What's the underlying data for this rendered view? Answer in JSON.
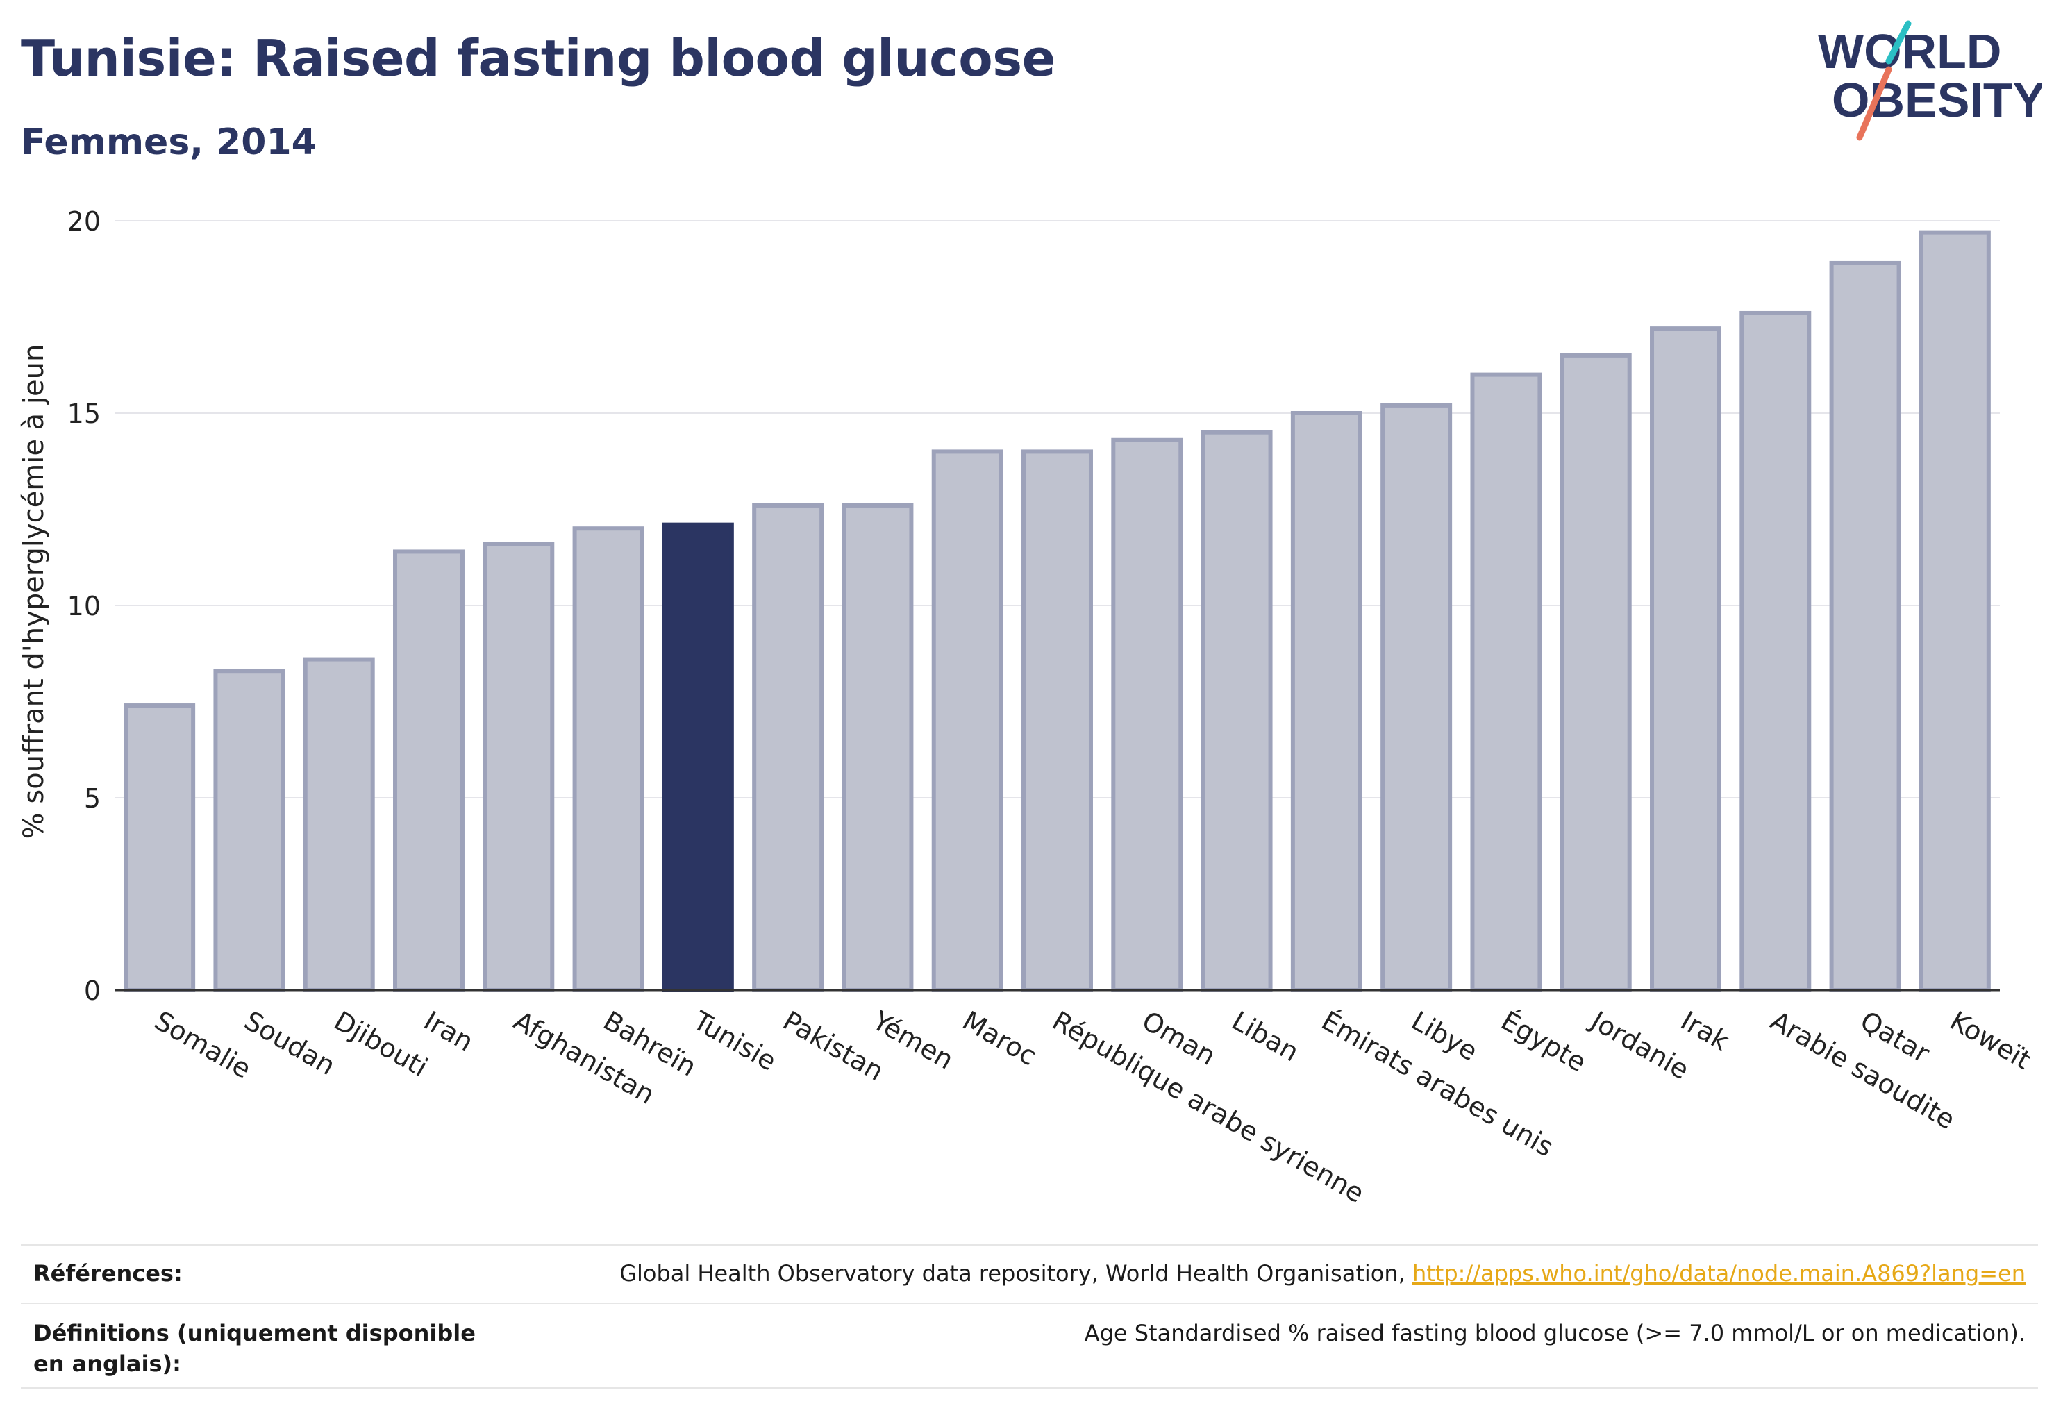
{
  "header": {
    "title": "Tunisie: Raised fasting blood glucose",
    "subtitle": "Femmes, 2014"
  },
  "logo": {
    "line1": "WORLD",
    "line2": "OBESITY",
    "colors": {
      "text": "#2b3562",
      "accent_teal": "#2bbfc4",
      "accent_red": "#e8735a"
    }
  },
  "chart_data": {
    "type": "bar",
    "ylabel": "% souffrant d'hyperglycémie à jeun",
    "xlabel": "",
    "ylim": [
      0,
      20
    ],
    "yticks": [
      0,
      5,
      10,
      15,
      20
    ],
    "grid": true,
    "highlight": "Tunisie",
    "colors": {
      "bar": "#bfc2cf",
      "bar_border": "#9da2ba",
      "highlight": "#2b3562",
      "grid": "#e5e5ea",
      "axis": "#333333"
    },
    "categories": [
      "Somalie",
      "Soudan",
      "Djibouti",
      "Iran",
      "Afghanistan",
      "Bahreïn",
      "Tunisie",
      "Pakistan",
      "Yémen",
      "Maroc",
      "République arabe syrienne",
      "Oman",
      "Liban",
      "Émirats arabes unis",
      "Libye",
      "Égypte",
      "Jordanie",
      "Irak",
      "Arabie saoudite",
      "Qatar",
      "Koweït"
    ],
    "values": [
      7.4,
      8.3,
      8.6,
      11.4,
      11.6,
      12.0,
      12.1,
      12.6,
      12.6,
      14.0,
      14.0,
      14.3,
      14.5,
      15.0,
      15.2,
      16.0,
      16.5,
      17.2,
      17.6,
      18.9,
      19.7
    ]
  },
  "footer": {
    "references_label": "Références:",
    "references_text": "Global Health Observatory data repository, World Health Organisation, ",
    "references_link": "http://apps.who.int/gho/data/node.main.A869?lang=en",
    "definitions_label": "Définitions (uniquement disponible en anglais):",
    "definitions_text": "Age Standardised % raised fasting blood glucose (>= 7.0 mmol/L or on medication)."
  }
}
